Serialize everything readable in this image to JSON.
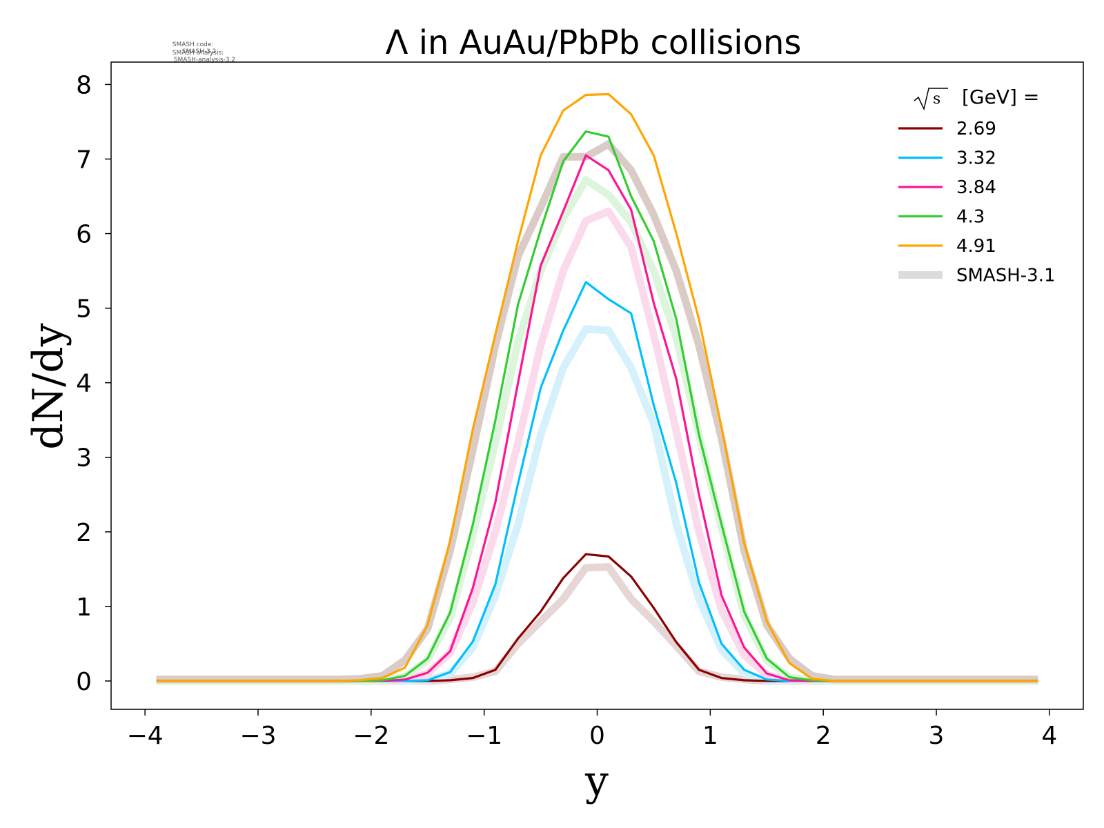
{
  "meta": {
    "line1_label": "SMASH code:",
    "line1_value": "SMASH-3.2",
    "line2_label": "SMASH analysis:",
    "line2_value": "SMASH-analysis-3.2"
  },
  "chart_data": {
    "type": "line",
    "title": "Λ in AuAu/PbPb collisions",
    "xlabel": "y",
    "ylabel": "dN/dy",
    "xlim": [
      -4.3,
      4.3
    ],
    "ylim": [
      -0.38,
      8.3
    ],
    "xticks": [
      -4,
      -3,
      -2,
      -1,
      0,
      1,
      2,
      3,
      4
    ],
    "xtick_labels": [
      "−4",
      "−3",
      "−2",
      "−1",
      "0",
      "1",
      "2",
      "3",
      "4"
    ],
    "yticks": [
      0,
      1,
      2,
      3,
      4,
      5,
      6,
      7,
      8
    ],
    "ytick_labels": [
      "0",
      "1",
      "2",
      "3",
      "4",
      "5",
      "6",
      "7",
      "8"
    ],
    "grid": false,
    "legend": {
      "placement": "top-right",
      "title_prefix": "√s",
      "title_suffix": "[GeV] =",
      "reference_label": "SMASH-3.1",
      "reference_color": "#dcdcdc"
    },
    "x": [
      -3.9,
      -3.7,
      -3.5,
      -3.3,
      -3.1,
      -2.9,
      -2.7,
      -2.5,
      -2.3,
      -2.1,
      -1.9,
      -1.7,
      -1.5,
      -1.3,
      -1.1,
      -0.9,
      -0.7,
      -0.5,
      -0.3,
      -0.1,
      0.1,
      0.3,
      0.5,
      0.7,
      0.9,
      1.1,
      1.3,
      1.5,
      1.7,
      1.9,
      2.1,
      2.3,
      2.5,
      2.7,
      2.9,
      3.1,
      3.3,
      3.5,
      3.7,
      3.9
    ],
    "series": [
      {
        "name": "2.69",
        "color": "#8b0000",
        "values": [
          0,
          0,
          0,
          0,
          0,
          0,
          0,
          0,
          0,
          0,
          0,
          0,
          0,
          0.01,
          0.04,
          0.15,
          0.57,
          0.93,
          1.38,
          1.7,
          1.67,
          1.4,
          0.98,
          0.52,
          0.15,
          0.04,
          0.01,
          0,
          0,
          0,
          0,
          0,
          0,
          0,
          0,
          0,
          0,
          0,
          0,
          0
        ],
        "reference": [
          0,
          0,
          0,
          0,
          0,
          0,
          0,
          0,
          0,
          0,
          0,
          0,
          0,
          0.02,
          0.05,
          0.13,
          0.5,
          0.8,
          1.1,
          1.52,
          1.53,
          1.1,
          0.8,
          0.47,
          0.13,
          0.05,
          0.02,
          0,
          0,
          0,
          0,
          0,
          0,
          0,
          0,
          0,
          0,
          0,
          0,
          0
        ],
        "reference_color": "#e6d6d6"
      },
      {
        "name": "3.32",
        "color": "#00bfff",
        "values": [
          0,
          0,
          0,
          0,
          0,
          0,
          0,
          0,
          0,
          0,
          0,
          0,
          0.01,
          0.12,
          0.53,
          1.3,
          2.65,
          3.93,
          4.7,
          5.35,
          5.12,
          4.93,
          3.7,
          2.65,
          1.32,
          0.5,
          0.15,
          0.02,
          0,
          0,
          0,
          0,
          0,
          0,
          0,
          0,
          0,
          0,
          0,
          0
        ],
        "reference": [
          0,
          0,
          0,
          0,
          0,
          0,
          0,
          0,
          0,
          0,
          0,
          0,
          0.01,
          0.1,
          0.45,
          1.15,
          2.1,
          3.3,
          4.2,
          4.72,
          4.7,
          4.2,
          3.45,
          2.1,
          1.1,
          0.42,
          0.1,
          0.01,
          0,
          0,
          0,
          0,
          0,
          0,
          0,
          0,
          0,
          0,
          0,
          0
        ],
        "reference_color": "#d4f1fc"
      },
      {
        "name": "3.84",
        "color": "#ff1493",
        "values": [
          0,
          0,
          0,
          0,
          0,
          0,
          0,
          0,
          0,
          0,
          0,
          0.02,
          0.11,
          0.4,
          1.25,
          2.4,
          4.0,
          5.57,
          6.3,
          7.05,
          6.85,
          6.32,
          5.07,
          4.05,
          2.5,
          1.15,
          0.45,
          0.1,
          0.01,
          0,
          0,
          0,
          0,
          0,
          0,
          0,
          0,
          0,
          0,
          0
        ],
        "reference": [
          0,
          0,
          0,
          0,
          0,
          0,
          0,
          0,
          0,
          0,
          0,
          0.02,
          0.1,
          0.38,
          1.05,
          2.0,
          3.2,
          4.5,
          5.5,
          6.17,
          6.3,
          5.82,
          4.65,
          3.35,
          2.0,
          0.95,
          0.35,
          0.08,
          0.01,
          0,
          0,
          0,
          0,
          0,
          0,
          0,
          0,
          0,
          0,
          0
        ],
        "reference_color": "#fbdaeb"
      },
      {
        "name": "4.3",
        "color": "#32cd32",
        "values": [
          0,
          0,
          0,
          0,
          0,
          0,
          0,
          0,
          0,
          0,
          0.01,
          0.07,
          0.3,
          0.92,
          2.1,
          3.5,
          5.05,
          6.05,
          6.97,
          7.37,
          7.3,
          6.5,
          5.9,
          4.85,
          3.3,
          2.1,
          0.93,
          0.3,
          0.05,
          0.01,
          0,
          0,
          0,
          0,
          0,
          0,
          0,
          0,
          0,
          0
        ],
        "reference": [
          0,
          0,
          0,
          0,
          0,
          0,
          0,
          0,
          0,
          0,
          0.01,
          0.06,
          0.28,
          0.85,
          1.95,
          3.2,
          4.55,
          5.5,
          6.2,
          6.72,
          6.52,
          6.15,
          5.5,
          4.6,
          3.3,
          2.05,
          0.88,
          0.28,
          0.05,
          0.01,
          0,
          0,
          0,
          0,
          0,
          0,
          0,
          0,
          0,
          0
        ],
        "reference_color": "#ddf5dd"
      },
      {
        "name": "4.91",
        "color": "#ffa500",
        "values": [
          0,
          0,
          0,
          0,
          0,
          0,
          0,
          0,
          0,
          0.01,
          0.04,
          0.18,
          0.75,
          1.88,
          3.38,
          4.65,
          5.9,
          7.05,
          7.65,
          7.86,
          7.87,
          7.6,
          7.05,
          6.0,
          4.85,
          3.4,
          1.85,
          0.8,
          0.24,
          0.03,
          0,
          0,
          0,
          0,
          0,
          0,
          0,
          0,
          0,
          0
        ],
        "reference": [
          0.02,
          0.02,
          0.02,
          0.02,
          0.02,
          0.02,
          0.02,
          0.02,
          0.02,
          0.03,
          0.07,
          0.28,
          0.7,
          1.75,
          3.1,
          4.5,
          5.7,
          6.35,
          7.03,
          7.03,
          7.2,
          6.85,
          6.25,
          5.5,
          4.5,
          3.25,
          1.75,
          0.75,
          0.3,
          0.07,
          0.02,
          0.02,
          0.02,
          0.02,
          0.02,
          0.02,
          0.02,
          0.02,
          0.02,
          0.02
        ],
        "reference_color": "#dacbc7"
      }
    ]
  }
}
